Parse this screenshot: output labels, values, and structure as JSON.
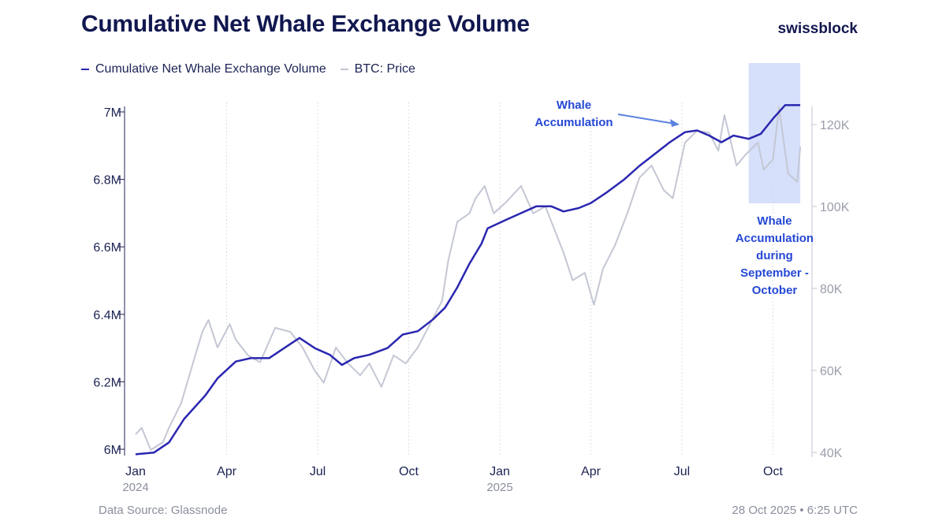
{
  "header": {
    "title": "Cumulative Net Whale Exchange Volume",
    "logo": "swissblock"
  },
  "footer": {
    "source": "Data Source: Glassnode",
    "timestamp": "28 Oct 2025 • 6:25 UTC"
  },
  "colors": {
    "whale": "#2a27b0",
    "price": "#c4c7d4",
    "title": "#11174f",
    "annotation": "#2548d4",
    "highlight": "#d6e0fb"
  },
  "chart_data": {
    "type": "line",
    "title": "Cumulative Net Whale Exchange Volume",
    "x_unit": "months since Jan 2024",
    "xlim": [
      0,
      21.9
    ],
    "x_ticks": [
      {
        "at": 0,
        "label": "Jan",
        "year": "2024"
      },
      {
        "at": 3,
        "label": "Apr"
      },
      {
        "at": 6,
        "label": "Jul"
      },
      {
        "at": 9,
        "label": "Oct"
      },
      {
        "at": 12,
        "label": "Jan",
        "year": "2025"
      },
      {
        "at": 15,
        "label": "Apr"
      },
      {
        "at": 18,
        "label": "Jul"
      },
      {
        "at": 21,
        "label": "Oct"
      }
    ],
    "y_left": {
      "label": "Cumulative Net Whale Exchange Volume",
      "ylim": [
        5.98,
        7.02
      ],
      "ticks": [
        {
          "v": 6,
          "label": "6M"
        },
        {
          "v": 6.2,
          "label": "6.2M"
        },
        {
          "v": 6.4,
          "label": "6.4M"
        },
        {
          "v": 6.6,
          "label": "6.6M"
        },
        {
          "v": 6.8,
          "label": "6.8M"
        },
        {
          "v": 7,
          "label": "7M"
        }
      ]
    },
    "y_right": {
      "label": "BTC: Price",
      "ticks": [
        {
          "v": 40,
          "label": "40K"
        },
        {
          "v": 60,
          "label": "60K"
        },
        {
          "v": 80,
          "label": "80K"
        },
        {
          "v": 100,
          "label": "100K"
        },
        {
          "v": 120,
          "label": "120K"
        }
      ]
    },
    "legend": [
      "Cumulative Net Whale Exchange Volume",
      "BTC: Price"
    ],
    "series": [
      {
        "name": "Cumulative Net Whale Exchange Volume",
        "axis": "left",
        "unit": "M",
        "x": [
          0,
          0.6,
          1.1,
          1.6,
          2.3,
          2.7,
          3.3,
          3.8,
          4.4,
          4.9,
          5.4,
          5.9,
          6.4,
          6.8,
          7.2,
          7.7,
          8.3,
          8.8,
          9.3,
          9.8,
          10.2,
          10.6,
          11.0,
          11.4,
          11.6,
          12.2,
          12.7,
          13.2,
          13.7,
          14.1,
          14.6,
          15.0,
          15.5,
          16.1,
          16.6,
          17.1,
          17.6,
          18.1,
          18.5,
          18.9,
          19.3,
          19.7,
          20.2,
          20.6,
          21.0,
          21.4,
          21.9
        ],
        "y": [
          5.985,
          5.99,
          6.02,
          6.09,
          6.16,
          6.21,
          6.26,
          6.27,
          6.27,
          6.3,
          6.33,
          6.3,
          6.28,
          6.25,
          6.27,
          6.28,
          6.3,
          6.34,
          6.35,
          6.385,
          6.42,
          6.48,
          6.55,
          6.61,
          6.655,
          6.68,
          6.7,
          6.72,
          6.72,
          6.705,
          6.715,
          6.73,
          6.76,
          6.8,
          6.84,
          6.875,
          6.91,
          6.94,
          6.945,
          6.93,
          6.91,
          6.93,
          6.92,
          6.935,
          6.98,
          7.02,
          7.02
        ]
      },
      {
        "name": "BTC: Price",
        "axis": "right",
        "unit": "K USD",
        "x": [
          0,
          0.2,
          0.5,
          0.9,
          1.1,
          1.5,
          1.9,
          2.2,
          2.4,
          2.7,
          3.1,
          3.3,
          3.7,
          4.1,
          4.6,
          5.1,
          5.5,
          5.9,
          6.2,
          6.6,
          7.0,
          7.4,
          7.7,
          8.1,
          8.5,
          8.9,
          9.3,
          9.7,
          10.1,
          10.3,
          10.6,
          11.0,
          11.2,
          11.5,
          11.8,
          12.2,
          12.7,
          13.1,
          13.5,
          13.8,
          14.1,
          14.4,
          14.8,
          15.1,
          15.4,
          15.8,
          16.2,
          16.6,
          17.0,
          17.4,
          17.7,
          18.1,
          18.5,
          18.9,
          19.2,
          19.4,
          19.8,
          20.1,
          20.5,
          20.7,
          21.0,
          21.2,
          21.5,
          21.8,
          21.9
        ],
        "y": [
          44.4,
          46,
          40.6,
          42.5,
          46,
          52,
          62,
          69.4,
          72.3,
          65.6,
          71.3,
          67.5,
          63.7,
          62,
          70.4,
          69.4,
          65.6,
          60,
          57,
          65.6,
          61.7,
          58.8,
          61.7,
          56,
          63.7,
          61.7,
          65.6,
          71.3,
          77,
          86.7,
          96.3,
          98.3,
          102,
          105,
          98.3,
          101,
          105,
          98.3,
          100,
          94.4,
          88.7,
          82,
          83.8,
          76,
          84.8,
          90.6,
          98.3,
          107,
          110,
          104,
          102,
          115.6,
          118.5,
          118,
          113.6,
          122.3,
          110,
          112.7,
          115.6,
          109,
          111.5,
          124.2,
          108,
          106,
          114.6
        ]
      }
    ],
    "highlight": {
      "x_range": [
        20.2,
        21.9
      ]
    },
    "annotations": [
      {
        "text": "Whale Accumulation",
        "lines": [
          "Whale",
          "Accumulation"
        ]
      },
      {
        "text": "Whale Accumulation during September - October",
        "lines": [
          "Whale",
          "Accumulation",
          "during",
          "September -",
          "October"
        ]
      }
    ]
  }
}
